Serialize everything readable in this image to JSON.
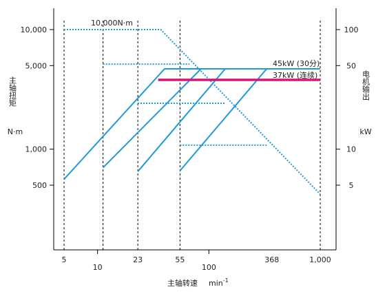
{
  "chart_data": {
    "type": "line",
    "title": "",
    "xlabel": "主轴转速",
    "xunit_base": "min",
    "xunit_exp": "-1",
    "ylabel_left": "主轴扭矩",
    "yunit_left": "N·m",
    "ylabel_right": "电机输出",
    "yunit_right": "kW",
    "x_scale": "log",
    "y_scale": "log",
    "xlim": [
      4.3,
      1150
    ],
    "ylim_left": [
      130,
      15500
    ],
    "ylim_right": [
      1.3,
      155
    ],
    "x_ticks_top_row": [
      {
        "value": 5,
        "label": "5"
      },
      {
        "value": 23,
        "label": "23"
      },
      {
        "value": 55,
        "label": "55"
      },
      {
        "value": 368,
        "label": "368"
      },
      {
        "value": 1000,
        "label": "1,000"
      }
    ],
    "x_ticks_bottom_row": [
      {
        "value": 10,
        "label": "10"
      },
      {
        "value": 100,
        "label": "100"
      }
    ],
    "y_ticks_left": [
      {
        "value": 10000,
        "label": "10,000"
      },
      {
        "value": 5000,
        "label": "5,000"
      },
      {
        "value": 1000,
        "label": "1,000"
      },
      {
        "value": 500,
        "label": "500"
      }
    ],
    "y_ticks_right": [
      {
        "value": 100,
        "label": "100"
      },
      {
        "value": 50,
        "label": "50"
      },
      {
        "value": 10,
        "label": "10"
      },
      {
        "value": 5,
        "label": "5"
      }
    ],
    "gear_boundaries": [
      5,
      11.2,
      23,
      55,
      1000
    ],
    "annotations": [
      {
        "text": "10,000N·m"
      },
      {
        "text": "45kW (30分)"
      },
      {
        "text": "37kW (连续)"
      }
    ],
    "series": [
      {
        "style": "dotted",
        "color": "#1e9ad6",
        "points": [
          [
            5,
            10000
          ],
          [
            37,
            10000
          ],
          [
            1000,
            420
          ]
        ]
      },
      {
        "style": "solid",
        "color": "#1e9ad6",
        "points": [
          [
            5,
            560
          ],
          [
            40,
            4700
          ],
          [
            1000,
            4700
          ]
        ]
      },
      {
        "style": "solid",
        "color": "#1e9ad6",
        "points": [
          [
            11.2,
            700
          ],
          [
            85,
            4700
          ]
        ]
      },
      {
        "style": "solid",
        "color": "#1e9ad6",
        "points": [
          [
            23,
            650
          ],
          [
            140,
            4700
          ]
        ]
      },
      {
        "style": "solid",
        "color": "#1e9ad6",
        "points": [
          [
            55,
            660
          ],
          [
            330,
            4700
          ]
        ]
      },
      {
        "style": "dotted",
        "color": "#1e9ad6",
        "points": [
          [
            11.2,
            5150
          ],
          [
            67,
            5150
          ]
        ]
      },
      {
        "style": "dotted",
        "color": "#1e9ad6",
        "points": [
          [
            23,
            2420
          ],
          [
            140,
            2420
          ]
        ]
      },
      {
        "style": "dotted",
        "color": "#1e9ad6",
        "points": [
          [
            55,
            1080
          ],
          [
            330,
            1080
          ]
        ]
      },
      {
        "style": "solid",
        "color": "#d4147f",
        "points": [
          [
            35,
            3800
          ],
          [
            1000,
            3800
          ]
        ]
      }
    ]
  }
}
